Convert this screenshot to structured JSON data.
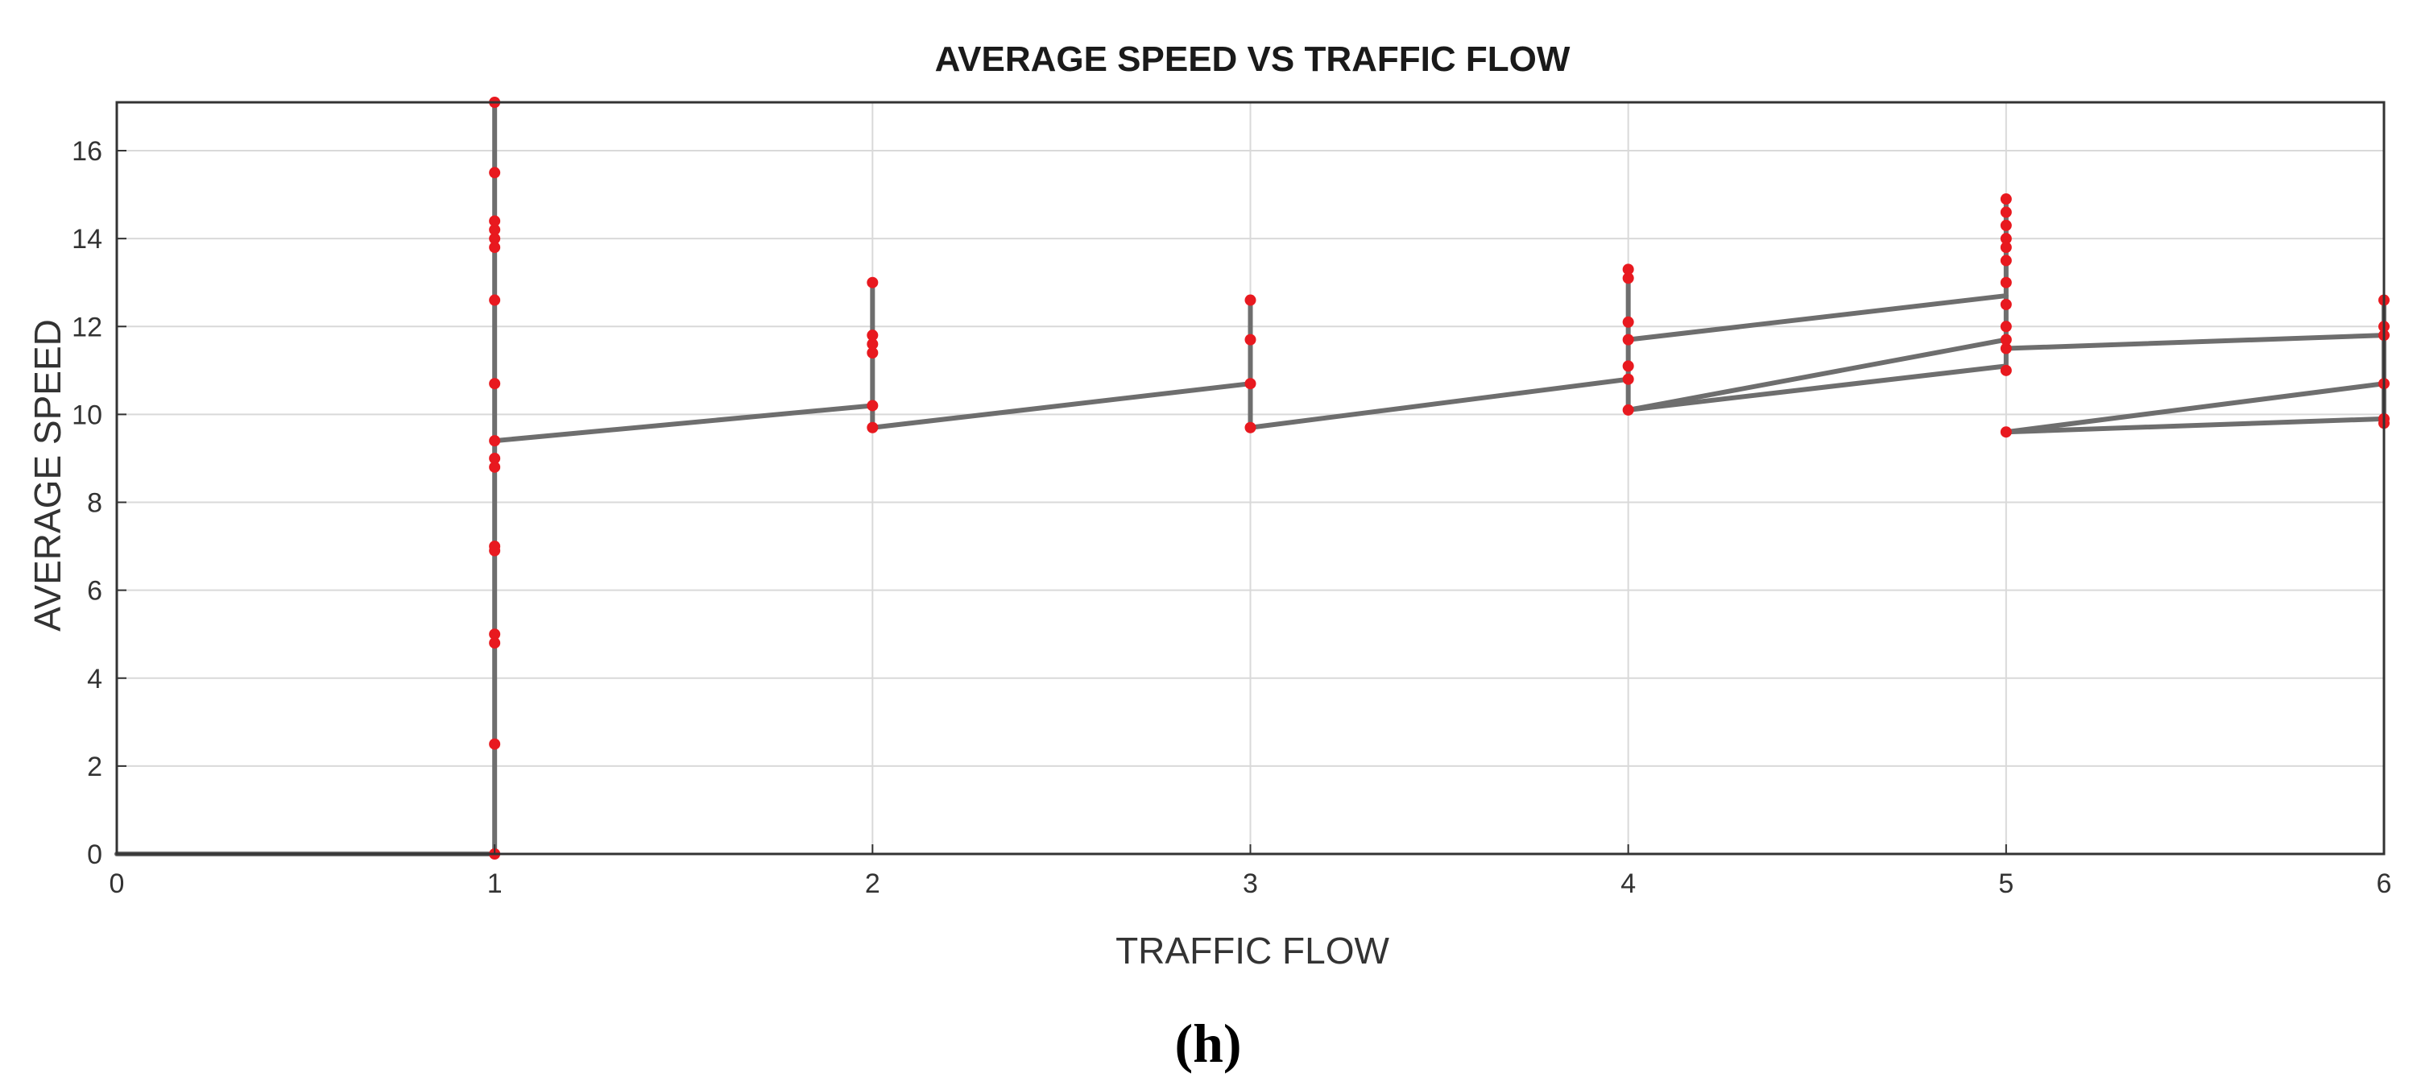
{
  "caption": "(h)",
  "chart_data": {
    "type": "line",
    "title": "AVERAGE SPEED VS TRAFFIC FLOW",
    "xlabel": "TRAFFIC FLOW",
    "ylabel": "AVERAGE SPEED",
    "xlim": [
      0,
      6
    ],
    "ylim": [
      0,
      17.1
    ],
    "xticks": [
      0,
      1,
      2,
      3,
      4,
      5,
      6
    ],
    "yticks": [
      0,
      2,
      4,
      6,
      8,
      10,
      12,
      14,
      16
    ],
    "grid": true,
    "line_color": "#6e6e6e",
    "point_color": "#e8191f",
    "segments": [
      [
        [
          0,
          0
        ],
        [
          1,
          0
        ]
      ],
      [
        [
          1,
          0
        ],
        [
          1,
          17.1
        ]
      ],
      [
        [
          1,
          9.4
        ],
        [
          2,
          10.2
        ]
      ],
      [
        [
          2,
          9.7
        ],
        [
          2,
          13.0
        ]
      ],
      [
        [
          2,
          9.7
        ],
        [
          3,
          10.7
        ]
      ],
      [
        [
          3,
          9.7
        ],
        [
          3,
          12.6
        ]
      ],
      [
        [
          3,
          9.7
        ],
        [
          4,
          10.8
        ]
      ],
      [
        [
          4,
          10.1
        ],
        [
          4,
          13.3
        ]
      ],
      [
        [
          4,
          11.7
        ],
        [
          5,
          12.7
        ]
      ],
      [
        [
          4,
          10.1
        ],
        [
          5,
          11.7
        ]
      ],
      [
        [
          4,
          10.1
        ],
        [
          5,
          11.1
        ]
      ],
      [
        [
          5,
          11.0
        ],
        [
          5,
          14.9
        ]
      ],
      [
        [
          5,
          11.5
        ],
        [
          6,
          11.8
        ]
      ],
      [
        [
          5,
          9.6
        ],
        [
          6,
          10.7
        ]
      ],
      [
        [
          5,
          9.6
        ],
        [
          6,
          9.9
        ]
      ],
      [
        [
          6,
          9.8
        ],
        [
          6,
          12.6
        ]
      ]
    ],
    "points": [
      {
        "x": 1,
        "y": [
          0,
          2.5,
          4.8,
          5.0,
          6.9,
          7.0,
          8.8,
          9.0,
          9.4,
          10.7,
          12.6,
          13.8,
          14.0,
          14.2,
          14.4,
          15.5,
          17.1
        ]
      },
      {
        "x": 2,
        "y": [
          9.7,
          10.2,
          11.4,
          11.6,
          11.8,
          13.0
        ]
      },
      {
        "x": 3,
        "y": [
          9.7,
          10.7,
          11.7,
          12.6
        ]
      },
      {
        "x": 4,
        "y": [
          10.1,
          10.8,
          11.1,
          11.7,
          12.1,
          13.1,
          13.3
        ]
      },
      {
        "x": 5,
        "y": [
          9.6,
          11.0,
          11.5,
          11.7,
          12.0,
          12.5,
          13.0,
          13.5,
          13.8,
          14.0,
          14.3,
          14.6,
          14.9
        ]
      },
      {
        "x": 6,
        "y": [
          9.8,
          9.9,
          10.7,
          11.8,
          12.0,
          12.6
        ]
      }
    ]
  }
}
